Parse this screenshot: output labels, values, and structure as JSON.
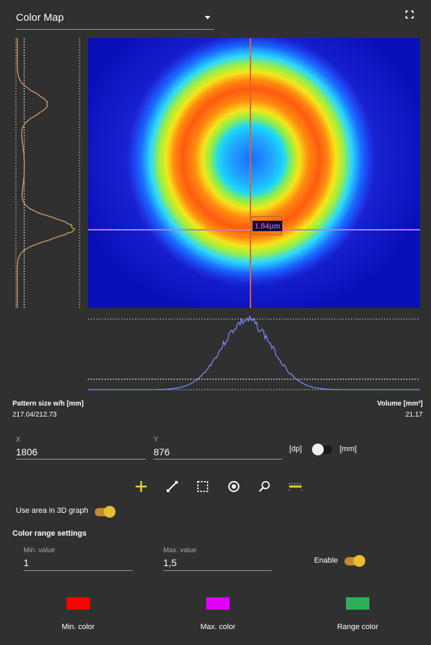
{
  "header": {
    "select_value": "Color Map",
    "fullscreen_icon": "fullscreen-icon"
  },
  "image": {
    "measure_label": "1.84µm",
    "crosshair_v_color": "#e0603a",
    "crosshair_h_color": "#b080e0"
  },
  "stats": {
    "pattern_label": "Pattern size w/h [mm]",
    "pattern_value": "217.04/212.73",
    "volume_label": "Volume [mm³]",
    "volume_value": "21.17"
  },
  "coords": {
    "x_label": "X",
    "x_value": "1806",
    "y_label": "Y",
    "y_value": "876",
    "unit_left": "[dp]",
    "unit_right": "[mm]",
    "unit_toggle_on": false
  },
  "tools": [
    "add-icon",
    "line-measure-icon",
    "rect-select-icon",
    "target-icon",
    "zoom-icon",
    "ruler-icon"
  ],
  "use_area": {
    "label": "Use area in 3D graph",
    "on": true
  },
  "color_range": {
    "title": "Color range settings",
    "min_label": "Min. value",
    "min_value": "1",
    "max_label": "Max. value",
    "max_value": "1,5",
    "enable_label": "Enable",
    "enable_on": true
  },
  "colors": [
    {
      "label": "Min. color",
      "color": "#ff0000"
    },
    {
      "label": "Max. color",
      "color": "#e000ff"
    },
    {
      "label": "Range color",
      "color": "#2fae5a"
    }
  ]
}
